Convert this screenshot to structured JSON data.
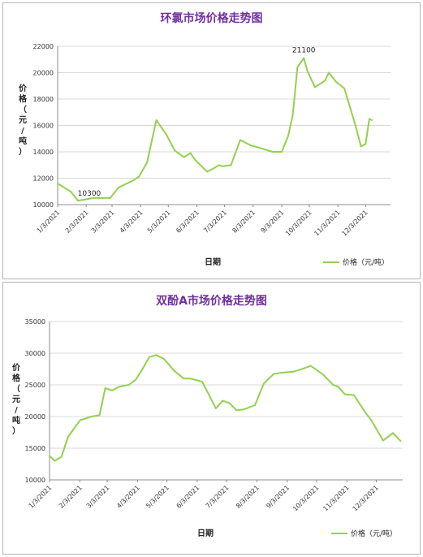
{
  "chart_data": [
    {
      "type": "line",
      "title": "环氯市场价格走势图",
      "xlabel": "日期",
      "ylabel": "价格（元/吨）",
      "ylim": [
        10000,
        22000
      ],
      "yticks": [
        10000,
        12000,
        14000,
        16000,
        18000,
        20000,
        22000
      ],
      "xlim": [
        "2021-01-03",
        "2021-12-30"
      ],
      "xticks": [
        "1/3/2021",
        "2/3/2021",
        "3/3/2021",
        "4/3/2021",
        "5/3/2021",
        "6/3/2021",
        "7/3/2021",
        "8/3/2021",
        "9/3/2021",
        "10/3/2021",
        "11/3/2021",
        "12/3/2021"
      ],
      "grid": true,
      "legend_position": "bottom-right",
      "color": "#92d050",
      "series": [
        {
          "name": "价格（元/吨）",
          "x": [
            "2021-01-03",
            "2021-01-17",
            "2021-01-25",
            "2021-02-03",
            "2021-02-10",
            "2021-02-20",
            "2021-03-01",
            "2021-03-10",
            "2021-03-25",
            "2021-04-01",
            "2021-04-10",
            "2021-04-20",
            "2021-05-01",
            "2021-05-10",
            "2021-05-20",
            "2021-05-27",
            "2021-06-01",
            "2021-06-14",
            "2021-06-20",
            "2021-06-27",
            "2021-07-01",
            "2021-07-10",
            "2021-07-20",
            "2021-07-31",
            "2021-08-10",
            "2021-08-24",
            "2021-09-03",
            "2021-09-10",
            "2021-09-15",
            "2021-09-20",
            "2021-09-27",
            "2021-10-01",
            "2021-10-09",
            "2021-10-20",
            "2021-10-24",
            "2021-11-01",
            "2021-11-10",
            "2021-11-22",
            "2021-11-28",
            "2021-12-03",
            "2021-12-07",
            "2021-12-10"
          ],
          "values": [
            11600,
            11000,
            10300,
            10400,
            10500,
            10500,
            10500,
            11300,
            11800,
            12100,
            13200,
            16400,
            15300,
            14100,
            13600,
            13900,
            13400,
            12500,
            12700,
            13000,
            12900,
            13000,
            14900,
            14500,
            14300,
            14000,
            14000,
            15200,
            16800,
            20400,
            21100,
            20100,
            18900,
            19400,
            20000,
            19300,
            18800,
            16000,
            14400,
            14600,
            16500,
            16400
          ]
        }
      ],
      "annotations": [
        {
          "text": "10300",
          "x": "2021-01-25",
          "y": 10300
        },
        {
          "text": "21100",
          "x": "2021-09-27",
          "y": 21100
        }
      ]
    },
    {
      "type": "line",
      "title": "双酚A市场价格走势图",
      "xlabel": "日期",
      "ylabel": "价格（元/吨）",
      "ylim": [
        10000,
        35000
      ],
      "yticks": [
        10000,
        15000,
        20000,
        25000,
        30000,
        35000
      ],
      "xlim": [
        "2021-01-03",
        "2021-12-30"
      ],
      "xticks": [
        "1/3/2021",
        "2/3/2021",
        "3/3/2021",
        "4/3/2021",
        "5/3/2021",
        "6/3/2021",
        "7/3/2021",
        "8/3/2021",
        "9/3/2021",
        "10/3/2021",
        "11/3/2021",
        "12/3/2021"
      ],
      "grid": true,
      "legend_position": "bottom-right",
      "color": "#92d050",
      "series": [
        {
          "name": "价格（元/吨）",
          "x": [
            "2021-01-03",
            "2021-01-08",
            "2021-01-15",
            "2021-01-22",
            "2021-02-03",
            "2021-02-15",
            "2021-02-23",
            "2021-03-01",
            "2021-03-08",
            "2021-03-15",
            "2021-03-25",
            "2021-04-01",
            "2021-04-08",
            "2021-04-15",
            "2021-04-22",
            "2021-04-30",
            "2021-05-10",
            "2021-05-20",
            "2021-05-27",
            "2021-06-08",
            "2021-06-15",
            "2021-06-22",
            "2021-06-29",
            "2021-07-06",
            "2021-07-13",
            "2021-07-20",
            "2021-08-01",
            "2021-08-10",
            "2021-08-20",
            "2021-08-27",
            "2021-09-03",
            "2021-09-10",
            "2021-09-20",
            "2021-09-27",
            "2021-10-09",
            "2021-10-20",
            "2021-10-25",
            "2021-11-01",
            "2021-11-10",
            "2021-11-22",
            "2021-11-28",
            "2021-12-10",
            "2021-12-20",
            "2021-12-28"
          ],
          "values": [
            13800,
            13000,
            13600,
            16800,
            19400,
            20000,
            20200,
            24500,
            24100,
            24700,
            25000,
            25800,
            27500,
            29400,
            29700,
            29100,
            27300,
            26000,
            26000,
            25500,
            23400,
            21300,
            22500,
            22100,
            21000,
            21100,
            21800,
            25200,
            26700,
            26900,
            27000,
            27100,
            27600,
            28000,
            26700,
            25000,
            24700,
            23500,
            23400,
            20600,
            19400,
            16200,
            17400,
            16100
          ]
        }
      ]
    }
  ]
}
